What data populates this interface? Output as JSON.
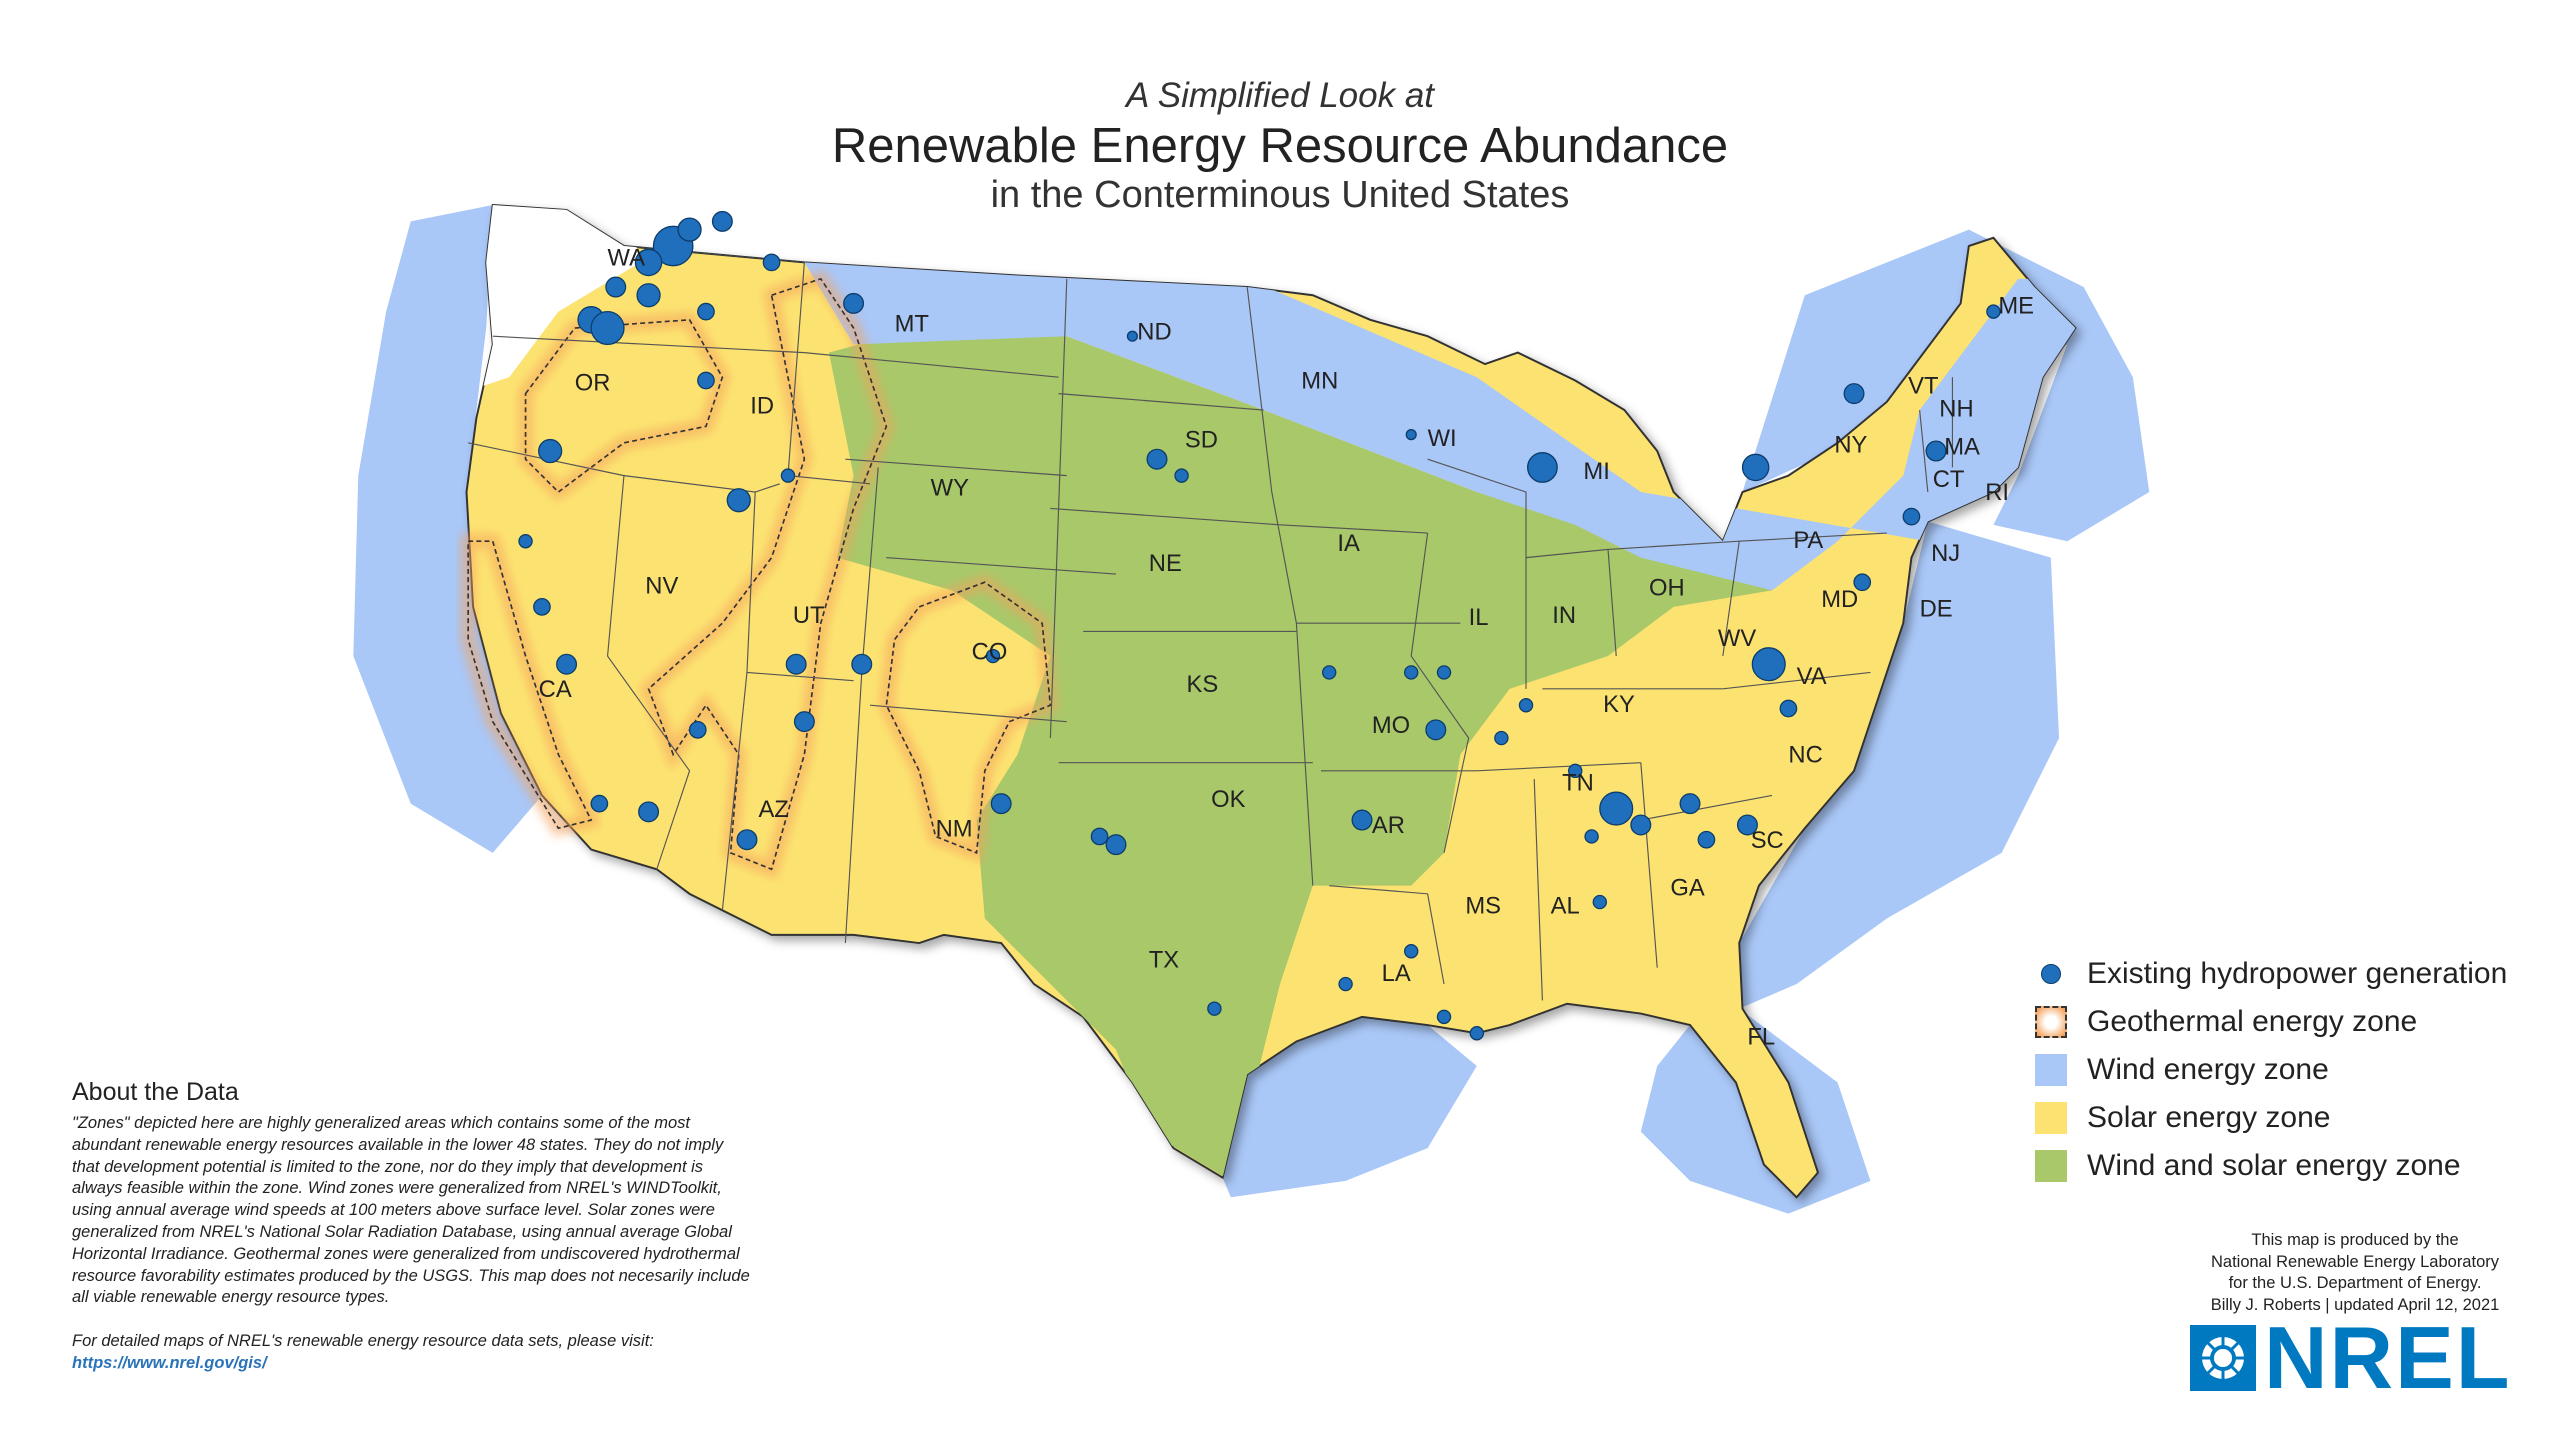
{
  "header": {
    "pretitle": "A Simplified Look at",
    "title": "Renewable Energy Resource Abundance",
    "subtitle": "in the Conterminous United States"
  },
  "colors": {
    "wind": "#a9c7f7",
    "solar": "#fce371",
    "wind_and_solar": "#a8c86a",
    "geothermal": "#f5a25d",
    "hydropower": "#1f6fbd",
    "state_border": "#555555",
    "brand": "#0079c1"
  },
  "states": [
    "WA",
    "OR",
    "CA",
    "ID",
    "NV",
    "MT",
    "WY",
    "UT",
    "AZ",
    "CO",
    "NM",
    "ND",
    "SD",
    "NE",
    "KS",
    "OK",
    "TX",
    "MN",
    "IA",
    "MO",
    "AR",
    "LA",
    "WI",
    "IL",
    "MI",
    "IN",
    "OH",
    "KY",
    "TN",
    "MS",
    "AL",
    "GA",
    "FL",
    "SC",
    "NC",
    "VA",
    "WV",
    "PA",
    "NY",
    "MD",
    "DE",
    "NJ",
    "CT",
    "RI",
    "MA",
    "VT",
    "NH",
    "ME"
  ],
  "legend": [
    {
      "label": "Existing hydropower generation",
      "symbol": "dot",
      "color": "#1f6fbd"
    },
    {
      "label": "Geothermal energy zone",
      "symbol": "dashed-glow",
      "color": "#f5a25d"
    },
    {
      "label": "Wind energy zone",
      "symbol": "square",
      "color": "#a9c7f7"
    },
    {
      "label": "Solar energy zone",
      "symbol": "square",
      "color": "#fce371"
    },
    {
      "label": "Wind and solar energy zone",
      "symbol": "square",
      "color": "#a8c86a"
    }
  ],
  "about": {
    "heading": "About the Data",
    "body": "\"Zones\" depicted here are highly generalized areas which contains some of the most abundant renewable energy resources available in the lower 48 states. They do not imply that development potential is limited to the zone, nor do they imply that development is always feasible within the zone. Wind zones were generalized from NREL's WINDToolkit, using annual average wind speeds at 100 meters above surface level. Solar zones were generalized from NREL's National Solar Radiation Database, using annual average Global Horizontal Irradiance. Geothermal zones were generalized from undiscovered hydrothermal resource favorability estimates produced by the USGS. This map does not necesarily include all viable renewable energy resource types.",
    "more": "For detailed maps of NREL's renewable energy resource data sets, please visit:",
    "link": "https://www.nrel.gov/gis/"
  },
  "credits": {
    "line1": "This map is produced by the",
    "line2": "National Renewable Energy Laboratory",
    "line3": "for the U.S. Department of Energy.",
    "line4": "Billy J. Roberts | updated April 12, 2021"
  },
  "logo": {
    "text": "NREL"
  }
}
